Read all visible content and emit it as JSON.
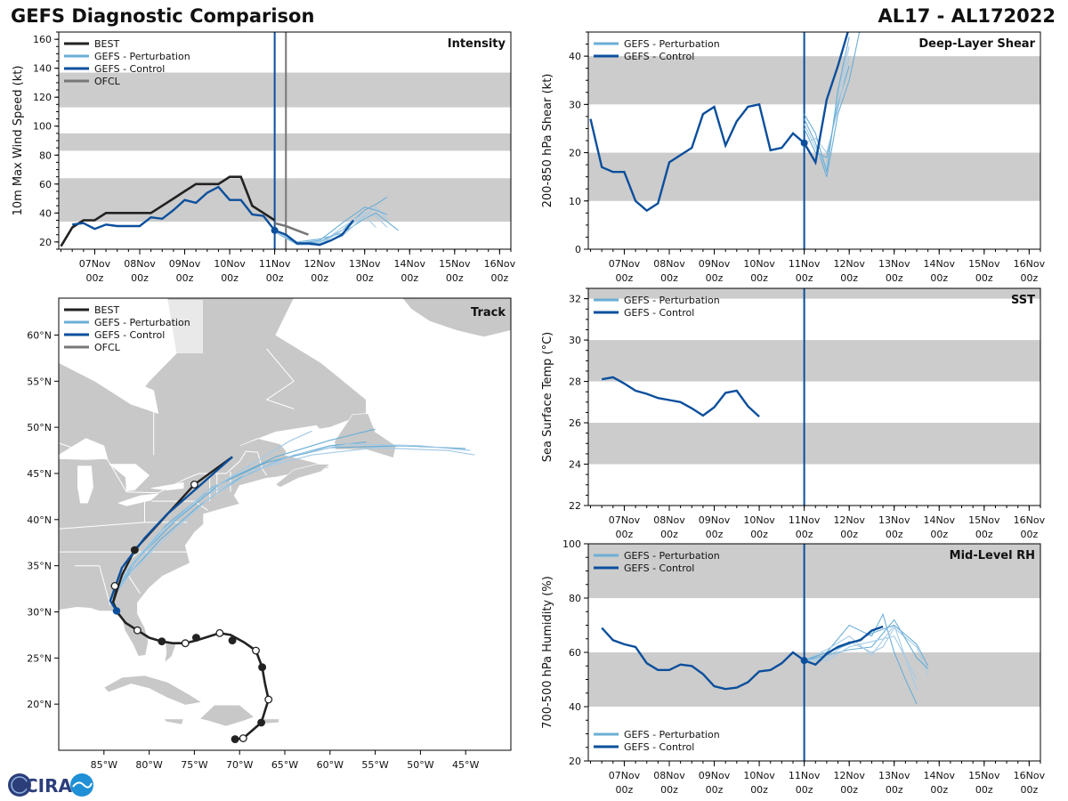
{
  "header": {
    "title": "GEFS Diagnostic Comparison",
    "storm_id": "AL17 - AL172022"
  },
  "logo": {
    "text": "CIRA"
  },
  "colors": {
    "best": "#222222",
    "perturbation": "#6baed6",
    "perturbation_light": "#a6cbe6",
    "control": "#0b4f9c",
    "ofcl": "#777777",
    "band": "#cccccc",
    "land": "#c8c8c8",
    "border": "#ffffff"
  },
  "time_axis": {
    "start_label_day": 7,
    "tick_days": [
      7,
      8,
      9,
      10,
      11,
      12,
      13,
      14,
      15,
      16
    ],
    "tick_labels": [
      {
        "day": "07Nov",
        "hour": "00z"
      },
      {
        "day": "08Nov",
        "hour": "00z"
      },
      {
        "day": "09Nov",
        "hour": "00z"
      },
      {
        "day": "10Nov",
        "hour": "00z"
      },
      {
        "day": "11Nov",
        "hour": "00z"
      },
      {
        "day": "12Nov",
        "hour": "00z"
      },
      {
        "day": "13Nov",
        "hour": "00z"
      },
      {
        "day": "14Nov",
        "hour": "00z"
      },
      {
        "day": "15Nov",
        "hour": "00z"
      },
      {
        "day": "16Nov",
        "hour": "00z"
      }
    ],
    "range": [
      6.2,
      16.25
    ]
  },
  "chart_data": [
    {
      "id": "intensity",
      "type": "line",
      "title": "Intensity",
      "ylabel": "10m Max Wind Speed (kt)",
      "ylim": [
        15,
        165
      ],
      "yticks": [
        20,
        40,
        60,
        80,
        100,
        120,
        140,
        160
      ],
      "bands": [
        [
          34,
          64
        ],
        [
          83,
          95
        ],
        [
          113,
          137
        ]
      ],
      "vlines": [
        {
          "x": 11.0,
          "color": "control"
        },
        {
          "x": 11.25,
          "color": "ofcl"
        }
      ],
      "legend": [
        "BEST",
        "GEFS - Perturbation",
        "GEFS - Control",
        "OFCL"
      ],
      "best": {
        "x": [
          6.25,
          6.5,
          6.75,
          7.0,
          7.25,
          7.5,
          7.75,
          8.0,
          8.25,
          8.5,
          8.75,
          9.0,
          9.25,
          9.5,
          9.75,
          10.0,
          10.25,
          10.5,
          10.75,
          11.0
        ],
        "y": [
          17,
          30,
          35,
          35,
          40,
          40,
          40,
          40,
          40,
          45,
          50,
          55,
          60,
          60,
          60,
          65,
          65,
          45,
          40,
          35
        ]
      },
      "control": {
        "x": [
          6.5,
          6.75,
          7.0,
          7.25,
          7.5,
          7.75,
          8.0,
          8.25,
          8.5,
          8.75,
          9.0,
          9.25,
          9.5,
          9.75,
          10.0,
          10.25,
          10.5,
          10.75,
          11.0,
          11.25,
          11.5,
          11.75,
          12.0,
          12.25,
          12.5,
          12.75
        ],
        "y": [
          32,
          33,
          29,
          32,
          31,
          31,
          31,
          37,
          36,
          42,
          49,
          47,
          54,
          58,
          49,
          49,
          39,
          38,
          28,
          25,
          19,
          19,
          18,
          21,
          25,
          35
        ]
      },
      "ofcl": {
        "x": [
          11.0,
          11.25,
          11.5,
          11.75
        ],
        "y": [
          33,
          31,
          28,
          25
        ]
      },
      "perturbations": [
        {
          "x": [
            11.0,
            11.5,
            12.0,
            12.5,
            13.0,
            13.25,
            13.5
          ],
          "y": [
            27,
            19,
            20,
            28,
            42,
            46,
            51
          ]
        },
        {
          "x": [
            11.0,
            11.5,
            12.0,
            12.5,
            13.0,
            13.25,
            13.5
          ],
          "y": [
            27,
            18,
            18,
            30,
            40,
            38,
            30
          ]
        },
        {
          "x": [
            11.0,
            11.5,
            12.0,
            12.5,
            13.0,
            13.25,
            13.5,
            13.75
          ],
          "y": [
            27,
            20,
            22,
            26,
            36,
            40,
            34,
            28
          ]
        },
        {
          "x": [
            11.0,
            11.5,
            12.0,
            12.5,
            13.0,
            13.25,
            13.5
          ],
          "y": [
            27,
            18,
            19,
            24,
            38,
            44,
            36
          ]
        },
        {
          "x": [
            11.0,
            11.5,
            12.0,
            12.5,
            13.0,
            13.25,
            13.5
          ],
          "y": [
            27,
            19,
            21,
            33,
            44,
            42,
            39
          ]
        },
        {
          "x": [
            11.0,
            11.5,
            12.0,
            12.5,
            13.0,
            13.25
          ],
          "y": [
            27,
            20,
            18,
            28,
            38,
            30
          ]
        }
      ]
    },
    {
      "id": "shear",
      "type": "line",
      "title": "Deep-Layer Shear",
      "ylabel": "200-850 hPa Shear (kt)",
      "ylim": [
        0,
        45
      ],
      "yticks": [
        0,
        10,
        20,
        30,
        40
      ],
      "bands": [
        [
          10,
          20
        ],
        [
          30,
          40
        ]
      ],
      "vlines": [
        {
          "x": 11.0,
          "color": "control"
        }
      ],
      "legend": [
        "GEFS - Perturbation",
        "GEFS - Control"
      ],
      "control": {
        "x": [
          6.25,
          6.5,
          6.75,
          7.0,
          7.25,
          7.5,
          7.75,
          8.0,
          8.25,
          8.5,
          8.75,
          9.0,
          9.25,
          9.5,
          9.75,
          10.0,
          10.25,
          10.5,
          10.75,
          11.0,
          11.25,
          11.5,
          11.75,
          12.0
        ],
        "y": [
          27,
          17,
          16,
          16,
          10,
          8,
          9.5,
          18,
          19.5,
          21,
          28,
          29.5,
          21.5,
          26.5,
          29.5,
          30,
          20.5,
          21,
          24,
          22,
          18,
          31,
          38,
          46
        ]
      },
      "perturbations": [
        {
          "x": [
            11.0,
            11.25,
            11.5,
            11.75,
            12.0,
            12.25
          ],
          "y": [
            27,
            22,
            15,
            28,
            35,
            46
          ]
        },
        {
          "x": [
            11.0,
            11.25,
            11.5,
            11.75,
            12.0
          ],
          "y": [
            26,
            21,
            17,
            32,
            42
          ]
        },
        {
          "x": [
            11.0,
            11.25,
            11.5,
            11.75,
            12.0
          ],
          "y": [
            25,
            20,
            19,
            30,
            38
          ]
        },
        {
          "x": [
            11.0,
            11.25,
            11.5,
            11.75,
            12.0
          ],
          "y": [
            22,
            23,
            20,
            29,
            40
          ]
        },
        {
          "x": [
            11.0,
            11.25,
            11.5,
            11.75,
            12.0
          ],
          "y": [
            28,
            24,
            16,
            33,
            44
          ]
        }
      ]
    },
    {
      "id": "sst",
      "type": "line",
      "title": "SST",
      "ylabel": "Sea Surface Temp (°C)",
      "ylim": [
        22,
        32.5
      ],
      "yticks": [
        22,
        24,
        26,
        28,
        30,
        32
      ],
      "bands": [
        [
          24,
          26
        ],
        [
          28,
          30
        ],
        [
          32,
          32.5
        ]
      ],
      "vlines": [
        {
          "x": 11.0,
          "color": "control"
        }
      ],
      "legend": [
        "GEFS - Perturbation",
        "GEFS - Control"
      ],
      "control": {
        "x": [
          6.5,
          6.75,
          7.0,
          7.25,
          7.5,
          7.75,
          8.0,
          8.25,
          8.5,
          8.75,
          9.0,
          9.25,
          9.5,
          9.75,
          10.0
        ],
        "y": [
          28.1,
          28.2,
          27.9,
          27.55,
          27.4,
          27.2,
          27.1,
          27.0,
          26.7,
          26.35,
          26.75,
          27.45,
          27.55,
          26.8,
          26.3
        ]
      },
      "perturbations": []
    },
    {
      "id": "rh",
      "type": "line",
      "title": "Mid-Level RH",
      "ylabel": "700-500 hPa Humidity (%)",
      "ylim": [
        20,
        100
      ],
      "yticks": [
        20,
        40,
        60,
        80,
        100
      ],
      "bands": [
        [
          40,
          60
        ],
        [
          80,
          100
        ]
      ],
      "vlines": [
        {
          "x": 11.0,
          "color": "control"
        }
      ],
      "legend": [
        "GEFS - Perturbation",
        "GEFS - Control"
      ],
      "control": {
        "x": [
          6.5,
          6.75,
          7.0,
          7.25,
          7.5,
          7.75,
          8.0,
          8.25,
          8.5,
          8.75,
          9.0,
          9.25,
          9.5,
          9.75,
          10.0,
          10.25,
          10.5,
          10.75,
          11.0,
          11.25,
          11.5,
          11.75,
          12.0,
          12.25,
          12.5,
          12.75
        ],
        "y": [
          69,
          64.5,
          63,
          62,
          56,
          53.5,
          53.5,
          55.5,
          55,
          52,
          47.5,
          46.5,
          47,
          49,
          53,
          53.5,
          56,
          60,
          57,
          55.5,
          59.5,
          62,
          63.5,
          64.5,
          68,
          69.5
        ]
      },
      "perturbations": [
        {
          "x": [
            11.0,
            11.5,
            12.0,
            12.5,
            12.75,
            13.0,
            13.25,
            13.5
          ],
          "y": [
            57,
            60,
            70,
            66,
            74,
            60,
            50,
            41
          ]
        },
        {
          "x": [
            11.0,
            11.5,
            12.0,
            12.5,
            12.75,
            13.0,
            13.5,
            13.75
          ],
          "y": [
            57,
            58,
            64,
            60,
            62,
            69,
            62,
            52
          ]
        },
        {
          "x": [
            11.0,
            11.5,
            12.0,
            12.5,
            13.0,
            13.5,
            13.75
          ],
          "y": [
            57,
            59,
            61,
            62,
            72,
            58,
            54
          ]
        },
        {
          "x": [
            11.0,
            11.5,
            12.0,
            12.5,
            13.0,
            13.25,
            13.5
          ],
          "y": [
            57,
            61,
            66,
            59,
            70,
            58,
            46
          ]
        },
        {
          "x": [
            11.0,
            11.5,
            12.0,
            12.5,
            13.0,
            13.5,
            13.75
          ],
          "y": [
            57,
            60,
            63,
            67,
            70,
            63,
            55
          ]
        },
        {
          "x": [
            11.0,
            11.5,
            12.0,
            12.5,
            13.0,
            13.5
          ],
          "y": [
            57,
            57,
            62,
            64,
            66,
            50
          ]
        }
      ]
    },
    {
      "id": "track",
      "type": "scatter",
      "title": "Track",
      "legend": [
        "BEST",
        "GEFS - Perturbation",
        "GEFS - Control",
        "OFCL"
      ],
      "xlim": [
        -90,
        -40
      ],
      "ylim": [
        15,
        64
      ],
      "xticks": [
        -85,
        -80,
        -75,
        -70,
        -65,
        -60,
        -55,
        -50,
        -45
      ],
      "xtick_labels": [
        "85°W",
        "80°W",
        "75°W",
        "70°W",
        "65°W",
        "60°W",
        "55°W",
        "50°W",
        "45°W"
      ],
      "yticks": [
        20,
        25,
        30,
        35,
        40,
        45,
        50,
        55,
        60
      ],
      "ytick_labels": [
        "20°N",
        "25°N",
        "30°N",
        "35°N",
        "40°N",
        "45°N",
        "50°N",
        "55°N",
        "60°N"
      ],
      "best": {
        "lon": [
          -70.5,
          -69.6,
          -67.6,
          -66.8,
          -67.2,
          -67.5,
          -68.2,
          -69.5,
          -71.0,
          -72.2,
          -73.5,
          -74.8,
          -76.0,
          -77.4,
          -78.6,
          -80.0,
          -81.3,
          -82.6,
          -83.4,
          -84.0,
          -83.5,
          -83.8,
          -84.2
        ],
        "lat": [
          16.2,
          16.3,
          18.0,
          20.5,
          22.3,
          24.0,
          25.8,
          26.7,
          27.5,
          27.7,
          27.3,
          26.9,
          26.6,
          26.6,
          26.8,
          27.2,
          28.0,
          28.8,
          29.8,
          31.0,
          32.8,
          32.8,
          32.8
        ]
      },
      "best_markers": [
        {
          "lon": -70.5,
          "lat": 16.2,
          "fill": "dark"
        },
        {
          "lon": -69.6,
          "lat": 16.3,
          "fill": "open"
        },
        {
          "lon": -67.6,
          "lat": 18.0,
          "fill": "dark"
        },
        {
          "lon": -66.8,
          "lat": 20.5,
          "fill": "open"
        },
        {
          "lon": -67.5,
          "lat": 24.0,
          "fill": "dark"
        },
        {
          "lon": -68.2,
          "lat": 25.8,
          "fill": "open"
        },
        {
          "lon": -70.8,
          "lat": 26.9,
          "fill": "dark"
        },
        {
          "lon": -72.2,
          "lat": 27.7,
          "fill": "open"
        },
        {
          "lon": -74.8,
          "lat": 27.2,
          "fill": "dark"
        },
        {
          "lon": -76.0,
          "lat": 26.6,
          "fill": "open"
        },
        {
          "lon": -78.6,
          "lat": 26.8,
          "fill": "dark"
        },
        {
          "lon": -81.3,
          "lat": 28.0,
          "fill": "open"
        },
        {
          "lon": -83.8,
          "lat": 32.8,
          "fill": "open"
        },
        {
          "lon": -81.6,
          "lat": 36.7,
          "fill": "dark"
        },
        {
          "lon": -75.0,
          "lat": 43.8,
          "fill": "open"
        }
      ],
      "best_north": {
        "lon": [
          -84.0,
          -83.0,
          -81.6,
          -79.0,
          -75.0,
          -70.8
        ],
        "lat": [
          31.0,
          34.0,
          36.7,
          39.5,
          43.8,
          46.8
        ]
      },
      "control": {
        "lon": [
          -83.6,
          -84.3,
          -83.0,
          -80.5,
          -78.0,
          -74.5,
          -70.8
        ],
        "lat": [
          30.1,
          31.2,
          34.8,
          38.0,
          40.6,
          43.6,
          46.8
        ]
      },
      "control_marker": {
        "lon": -83.6,
        "lat": 30.1
      },
      "perturbations": [
        {
          "lon": [
            -83.6,
            -84.0,
            -82.0,
            -78.0,
            -73.0,
            -67.0,
            -60.0,
            -52.0,
            -45.0
          ],
          "lat": [
            30.1,
            31.5,
            35.0,
            39.5,
            43.5,
            46.2,
            47.8,
            48.0,
            47.7
          ]
        },
        {
          "lon": [
            -83.6,
            -84.0,
            -82.5,
            -79.0,
            -74.0,
            -68.0,
            -62.0,
            -55.0,
            -47.0,
            -44.0
          ],
          "lat": [
            30.1,
            31.5,
            34.5,
            38.5,
            42.5,
            45.5,
            47.0,
            47.8,
            47.5,
            47.0
          ]
        },
        {
          "lon": [
            -83.6,
            -84.0,
            -81.5,
            -77.0,
            -72.0,
            -66.0,
            -60.0,
            -55.0
          ],
          "lat": [
            30.1,
            31.4,
            35.5,
            40.0,
            44.0,
            46.8,
            48.6,
            49.8
          ]
        },
        {
          "lon": [
            -83.6,
            -84.0,
            -82.0,
            -78.5,
            -74.0,
            -69.0,
            -64.5,
            -62.0
          ],
          "lat": [
            30.1,
            31.5,
            34.8,
            38.8,
            42.8,
            45.8,
            48.5,
            49.6
          ]
        },
        {
          "lon": [
            -83.6,
            -84.0,
            -82.3,
            -78.8,
            -74.5,
            -70.0,
            -65.0,
            -60.0,
            -56.0
          ],
          "lat": [
            30.1,
            31.5,
            34.0,
            37.8,
            41.5,
            44.5,
            46.7,
            48.0,
            48.4
          ]
        },
        {
          "lon": [
            -83.6,
            -84.0,
            -82.0,
            -78.0,
            -73.5,
            -69.0,
            -64.0,
            -58.0,
            -50.0,
            -44.5
          ],
          "lat": [
            30.1,
            31.5,
            34.3,
            38.2,
            42.2,
            45.0,
            47.0,
            48.2,
            48.0,
            47.5
          ]
        }
      ],
      "ofcl": {
        "lon": [],
        "lat": []
      }
    }
  ]
}
